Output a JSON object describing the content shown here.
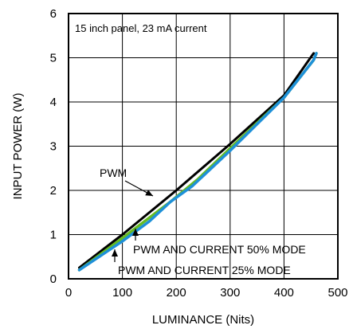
{
  "chart_data": {
    "type": "line",
    "title": "",
    "xlabel": "LUMINANCE (Nits)",
    "ylabel": "INPUT POWER (W)",
    "xlim": [
      0,
      500
    ],
    "ylim": [
      0,
      6
    ],
    "xticks": [
      0,
      100,
      200,
      300,
      400,
      500
    ],
    "yticks": [
      0,
      1,
      2,
      3,
      4,
      5,
      6
    ],
    "x_tick_labels": [
      "0",
      "100",
      "200",
      "300",
      "400",
      "500"
    ],
    "y_tick_labels": [
      "0",
      "1",
      "2",
      "3",
      "4",
      "5",
      "6"
    ],
    "grid": true,
    "legend": "none",
    "annotation_box": "15 inch panel, 23 mA current",
    "series": [
      {
        "name": "PWM",
        "color": "#000000",
        "points": [
          [
            20,
            0.25
          ],
          [
            100,
            1.0
          ],
          [
            200,
            2.0
          ],
          [
            300,
            3.05
          ],
          [
            400,
            4.15
          ],
          [
            455,
            5.1
          ]
        ]
      },
      {
        "name": "PWM AND CURRENT 50% MODE",
        "color": "#66bb22",
        "points": [
          [
            20,
            0.2
          ],
          [
            100,
            0.92
          ],
          [
            190,
            1.75
          ],
          [
            240,
            2.25
          ],
          [
            300,
            2.95
          ],
          [
            400,
            4.1
          ],
          [
            455,
            4.95
          ],
          [
            460,
            5.1
          ]
        ]
      },
      {
        "name": "PWM AND CURRENT 25% MODE",
        "color": "#1e90d8",
        "points": [
          [
            20,
            0.2
          ],
          [
            100,
            0.85
          ],
          [
            150,
            1.3
          ],
          [
            190,
            1.75
          ],
          [
            230,
            2.1
          ],
          [
            300,
            2.9
          ],
          [
            400,
            4.1
          ],
          [
            455,
            4.95
          ],
          [
            460,
            5.1
          ]
        ]
      }
    ],
    "annotations": [
      {
        "text": "PWM",
        "series": "PWM"
      },
      {
        "text": "PWM AND CURRENT 50% MODE",
        "series": "PWM AND CURRENT 50% MODE"
      },
      {
        "text": "PWM AND CURRENT 25% MODE",
        "series": "PWM AND CURRENT 25% MODE"
      }
    ]
  }
}
